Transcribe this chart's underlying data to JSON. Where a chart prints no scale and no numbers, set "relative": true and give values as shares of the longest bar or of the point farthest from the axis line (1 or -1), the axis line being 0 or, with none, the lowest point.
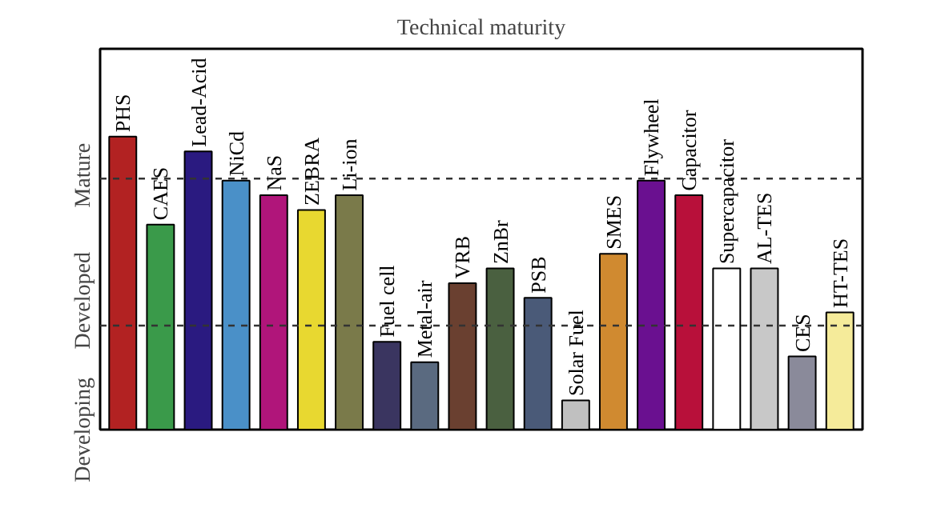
{
  "chart_data": {
    "type": "bar",
    "relative": true,
    "title": "Technical maturity",
    "categories": [
      "PHS",
      "CAES",
      "Lead-Acid",
      "NiCd",
      "NaS",
      "ZEBRA",
      "Li-ion",
      "Fuel cell",
      "Metal-air",
      "VRB",
      "ZnBr",
      "PSB",
      "Solar Fuel",
      "SMES",
      "Flywheel",
      "Capacitor",
      "Supercapacitor",
      "AL-TES",
      "CES",
      "HT-TES"
    ],
    "values": [
      1.0,
      0.7,
      0.95,
      0.85,
      0.8,
      0.75,
      0.8,
      0.3,
      0.23,
      0.5,
      0.55,
      0.45,
      0.1,
      0.6,
      0.85,
      0.8,
      0.55,
      0.55,
      0.25,
      0.4
    ],
    "colors": [
      "#b22222",
      "#3a9a4a",
      "#2a1a80",
      "#4a90c8",
      "#b0157a",
      "#e8d830",
      "#7a7a4a",
      "#3a3560",
      "#5a6a80",
      "#6a4030",
      "#4a6040",
      "#4a5a78",
      "#c0c0c0",
      "#d08a30",
      "#6a1090",
      "#b8103a",
      "#ffffff",
      "#c8c8c8",
      "#8a8a9a",
      "#f5eb9a"
    ],
    "ref_lines": [
      {
        "axis": "y",
        "value": 0.355,
        "line_style": "dashed"
      },
      {
        "axis": "y",
        "value": 0.857,
        "line_style": "dashed"
      }
    ],
    "annotations": [
      "Developing",
      "Developed",
      "Mature"
    ],
    "grid": false,
    "tick_labels": false
  }
}
